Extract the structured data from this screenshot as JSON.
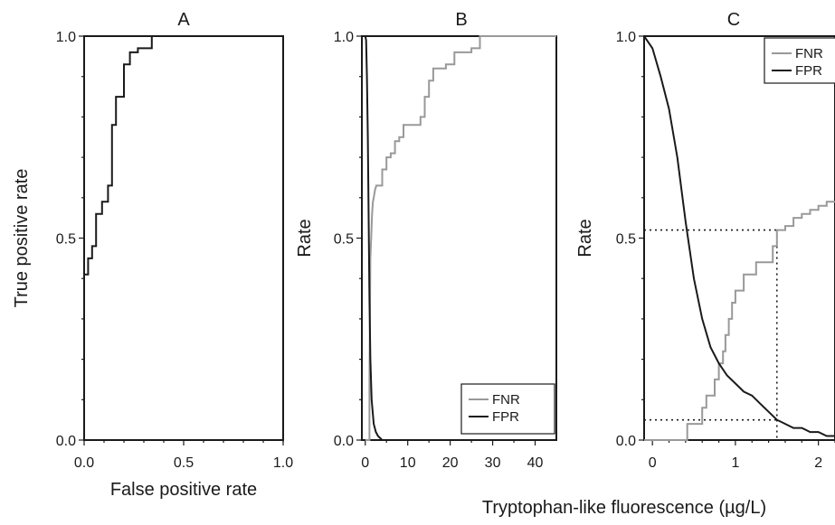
{
  "chart_data": [
    {
      "type": "line",
      "title": "A",
      "xlabel": "False positive rate",
      "ylabel": "True positive rate",
      "xlim": [
        0,
        1
      ],
      "ylim": [
        0,
        1
      ],
      "xticks": [
        "0.0",
        "0.5",
        "1.0"
      ],
      "yticks": [
        "0.0",
        "0.5",
        "1.0"
      ],
      "series": [
        {
          "color": "#1a1a1a",
          "step": true,
          "x": [
            0.0,
            0.0,
            0.02,
            0.02,
            0.04,
            0.04,
            0.06,
            0.06,
            0.09,
            0.09,
            0.12,
            0.12,
            0.14,
            0.14,
            0.16,
            0.16,
            0.2,
            0.2,
            0.23,
            0.23,
            0.27,
            0.27,
            0.34,
            0.34,
            0.4,
            0.4,
            1.0
          ],
          "y": [
            0.0,
            0.41,
            0.41,
            0.45,
            0.45,
            0.48,
            0.48,
            0.56,
            0.56,
            0.59,
            0.59,
            0.63,
            0.63,
            0.78,
            0.78,
            0.85,
            0.85,
            0.93,
            0.93,
            0.96,
            0.96,
            0.97,
            0.97,
            1.0,
            1.0,
            1.0,
            1.0
          ]
        }
      ]
    },
    {
      "type": "line",
      "title": "B",
      "xlabel": "",
      "ylabel": "Rate",
      "xlim": [
        -0.8,
        45
      ],
      "ylim": [
        0,
        1
      ],
      "xticks": [
        "0",
        "10",
        "20",
        "30",
        "40"
      ],
      "yticks": [
        "0.0",
        "0.5",
        "1.0"
      ],
      "legend": "bottom-right",
      "series": [
        {
          "name": "FNR",
          "color": "#999999",
          "step": true,
          "x": [
            0.0,
            1.0,
            1.0,
            1.2,
            1.4,
            1.6,
            1.8,
            2.0,
            2.3,
            2.6,
            3.0,
            4.0,
            4.0,
            5.0,
            5.0,
            6.0,
            6.0,
            7.0,
            7.0,
            8.0,
            8.0,
            9.0,
            9.0,
            11.0,
            11.0,
            13.0,
            13.0,
            14.0,
            14.0,
            15.0,
            15.0,
            16.0,
            16.0,
            17.0,
            17.0,
            19.0,
            19.0,
            21.0,
            21.0,
            25.0,
            25.0,
            27.0,
            27.0,
            45.0
          ],
          "y": [
            0.0,
            0.0,
            0.15,
            0.45,
            0.5,
            0.56,
            0.59,
            0.6,
            0.62,
            0.63,
            0.63,
            0.63,
            0.67,
            0.67,
            0.7,
            0.7,
            0.71,
            0.71,
            0.74,
            0.74,
            0.75,
            0.75,
            0.78,
            0.78,
            0.78,
            0.78,
            0.8,
            0.8,
            0.85,
            0.85,
            0.89,
            0.89,
            0.92,
            0.92,
            0.92,
            0.92,
            0.93,
            0.93,
            0.96,
            0.96,
            0.97,
            0.97,
            1.0,
            1.0
          ]
        },
        {
          "name": "FPR",
          "color": "#1a1a1a",
          "step": false,
          "x": [
            0.0,
            0.2,
            0.4,
            0.6,
            0.8,
            1.0,
            1.2,
            1.5,
            2.0,
            2.5,
            3.0,
            4.0,
            45.0
          ],
          "y": [
            1.0,
            0.99,
            0.9,
            0.75,
            0.55,
            0.35,
            0.2,
            0.1,
            0.04,
            0.02,
            0.01,
            0.0,
            0.0
          ]
        }
      ]
    },
    {
      "type": "line",
      "title": "C",
      "xlabel": "",
      "ylabel": "Rate",
      "xlim": [
        -0.1,
        2.2
      ],
      "ylim": [
        0,
        1
      ],
      "xticks": [
        "0",
        "1",
        "2"
      ],
      "yticks": [
        "0.0",
        "0.5",
        "1.0"
      ],
      "legend": "top-right",
      "shared_xlabel": "Tryptophan-like fluorescence (µg/L)",
      "reference_lines": {
        "threshold_x": 1.5,
        "fnr_at_threshold": 0.52,
        "fpr_at_threshold": 0.05
      },
      "series": [
        {
          "name": "FNR",
          "color": "#999999",
          "step": true,
          "x": [
            -0.1,
            0.42,
            0.42,
            0.6,
            0.6,
            0.65,
            0.65,
            0.75,
            0.75,
            0.8,
            0.8,
            0.85,
            0.85,
            0.88,
            0.88,
            0.92,
            0.92,
            0.96,
            0.96,
            1.0,
            1.0,
            1.1,
            1.1,
            1.25,
            1.25,
            1.45,
            1.45,
            1.5,
            1.5,
            1.55,
            1.55,
            1.6,
            1.6,
            1.7,
            1.7,
            1.8,
            1.8,
            1.9,
            1.9,
            2.0,
            2.0,
            2.1,
            2.1,
            2.2
          ],
          "y": [
            0.0,
            0.0,
            0.04,
            0.04,
            0.08,
            0.08,
            0.11,
            0.11,
            0.15,
            0.15,
            0.19,
            0.19,
            0.22,
            0.22,
            0.26,
            0.26,
            0.3,
            0.3,
            0.34,
            0.34,
            0.37,
            0.37,
            0.41,
            0.41,
            0.44,
            0.44,
            0.48,
            0.48,
            0.52,
            0.52,
            0.52,
            0.52,
            0.53,
            0.53,
            0.55,
            0.55,
            0.56,
            0.56,
            0.57,
            0.57,
            0.58,
            0.58,
            0.59,
            0.59
          ]
        },
        {
          "name": "FPR",
          "color": "#1a1a1a",
          "step": false,
          "x": [
            -0.1,
            0.0,
            0.1,
            0.2,
            0.3,
            0.4,
            0.5,
            0.6,
            0.7,
            0.8,
            0.9,
            1.0,
            1.1,
            1.2,
            1.3,
            1.4,
            1.5,
            1.6,
            1.7,
            1.8,
            1.9,
            2.0,
            2.1,
            2.2
          ],
          "y": [
            1.0,
            0.97,
            0.9,
            0.82,
            0.7,
            0.54,
            0.4,
            0.3,
            0.23,
            0.19,
            0.16,
            0.14,
            0.12,
            0.11,
            0.09,
            0.07,
            0.05,
            0.04,
            0.03,
            0.03,
            0.02,
            0.02,
            0.01,
            0.01
          ]
        }
      ]
    }
  ]
}
